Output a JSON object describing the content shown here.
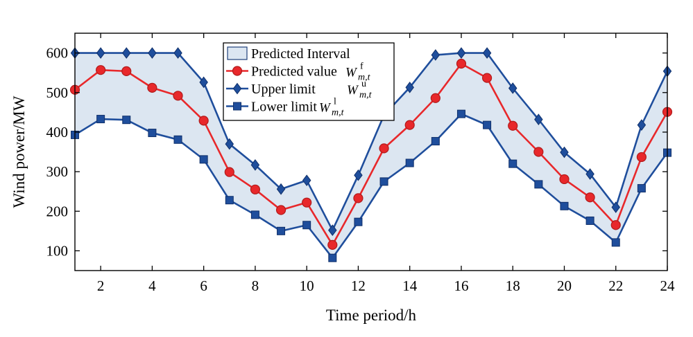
{
  "chart_data": {
    "type": "line",
    "xlabel": "Time period/h",
    "ylabel": "Wind power/MW",
    "xlim": [
      1,
      24
    ],
    "ylim": [
      50,
      650
    ],
    "xticks": [
      2,
      4,
      6,
      8,
      10,
      12,
      14,
      16,
      18,
      20,
      22,
      24
    ],
    "yticks": [
      100,
      200,
      300,
      400,
      500,
      600
    ],
    "grid": false,
    "legend_position": "top-left-center",
    "x": [
      1,
      2,
      3,
      4,
      5,
      6,
      7,
      8,
      9,
      10,
      11,
      12,
      13,
      14,
      15,
      16,
      17,
      18,
      19,
      20,
      21,
      22,
      23,
      24
    ],
    "series": [
      {
        "name": "Predicted value",
        "symbol": "W",
        "subscript": "m,t",
        "superscript": "f",
        "marker": "circle",
        "color": "#e8282b",
        "marker_edge": "#b01b1b",
        "values": [
          507,
          557,
          554,
          512,
          492,
          429,
          299,
          255,
          203,
          222,
          115,
          233,
          359,
          418,
          486,
          573,
          537,
          416,
          350,
          281,
          235,
          165,
          337,
          451
        ]
      },
      {
        "name": "Upper limit",
        "symbol": "W",
        "subscript": "m,t",
        "superscript": "u",
        "marker": "diamond",
        "color": "#1f4e9c",
        "values": [
          600,
          600,
          600,
          600,
          600,
          526,
          370,
          317,
          256,
          278,
          152,
          291,
          443,
          513,
          595,
          600,
          600,
          511,
          432,
          349,
          294,
          210,
          418,
          554
        ]
      },
      {
        "name": "Lower limit",
        "symbol": "W",
        "subscript": "m,t",
        "superscript": "l",
        "marker": "square",
        "color": "#1f4e9c",
        "values": [
          393,
          433,
          431,
          398,
          381,
          331,
          228,
          191,
          150,
          165,
          82,
          173,
          275,
          322,
          377,
          446,
          418,
          320,
          268,
          213,
          176,
          121,
          258,
          348
        ]
      }
    ],
    "interval": {
      "name": "Predicted Interval",
      "fill": "#dce6f1",
      "edge": "#1f3f7a"
    }
  }
}
